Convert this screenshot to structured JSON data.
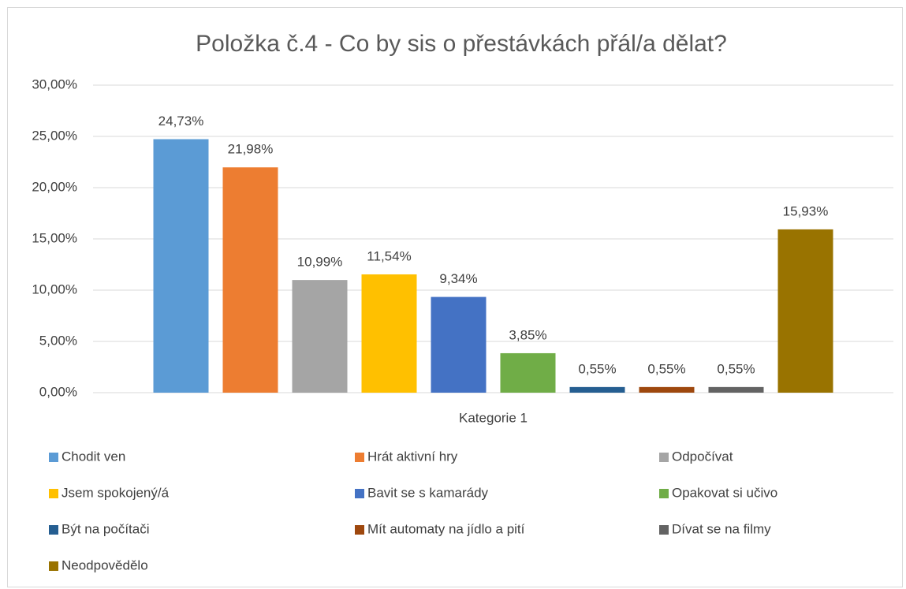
{
  "chart_data": {
    "type": "bar",
    "title": "Položka č.4 - Co by sis o přestávkách přál/a dělat?",
    "categories": [
      "Kategorie 1"
    ],
    "series": [
      {
        "name": "Chodit ven",
        "color": "#5b9bd5",
        "values": [
          24.73
        ],
        "value_labels": [
          "24,73%"
        ]
      },
      {
        "name": "Hrát aktivní hry",
        "color": "#ed7d31",
        "values": [
          21.98
        ],
        "value_labels": [
          "21,98%"
        ]
      },
      {
        "name": "Odpočívat",
        "color": "#a5a5a5",
        "values": [
          10.99
        ],
        "value_labels": [
          "10,99%"
        ]
      },
      {
        "name": "Jsem spokojený/á",
        "color": "#ffc000",
        "values": [
          11.54
        ],
        "value_labels": [
          "11,54%"
        ]
      },
      {
        "name": "Bavit se s kamarády",
        "color": "#4472c4",
        "values": [
          9.34
        ],
        "value_labels": [
          "9,34%"
        ]
      },
      {
        "name": "Opakovat si učivo",
        "color": "#70ad47",
        "values": [
          3.85
        ],
        "value_labels": [
          "3,85%"
        ]
      },
      {
        "name": "Být na počítači",
        "color": "#255e91",
        "values": [
          0.55
        ],
        "value_labels": [
          "0,55%"
        ]
      },
      {
        "name": "Mít automaty na jídlo a pití",
        "color": "#9e480e",
        "values": [
          0.55
        ],
        "value_labels": [
          "0,55%"
        ]
      },
      {
        "name": "Dívat se na filmy",
        "color": "#636363",
        "values": [
          0.55
        ],
        "value_labels": [
          "0,55%"
        ]
      },
      {
        "name": "Neodpovědělo",
        "color": "#997300",
        "values": [
          15.93
        ],
        "value_labels": [
          "15,93%"
        ]
      }
    ],
    "ylim": [
      0,
      30
    ],
    "yticks": [
      {
        "value": 0,
        "label": "0,00%"
      },
      {
        "value": 5,
        "label": "5,00%"
      },
      {
        "value": 10,
        "label": "10,00%"
      },
      {
        "value": 15,
        "label": "15,00%"
      },
      {
        "value": 20,
        "label": "20,00%"
      },
      {
        "value": 25,
        "label": "25,00%"
      },
      {
        "value": 30,
        "label": "30,00%"
      }
    ],
    "grid": true,
    "legend": "bottom"
  }
}
